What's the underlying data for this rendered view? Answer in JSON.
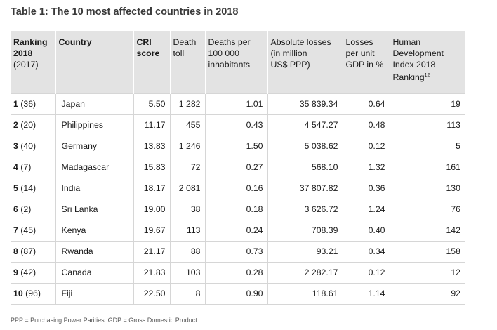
{
  "title": "Table 1: The 10 most affected countries in 2018",
  "headers": {
    "ranking": [
      "Ranking",
      "2018",
      "(2017)"
    ],
    "country": "Country",
    "cri": [
      "CRI",
      "score"
    ],
    "death": [
      "Death",
      "toll"
    ],
    "deaths_per": [
      "Deaths per",
      "100 000",
      "inhabitants"
    ],
    "abs_losses": [
      "Absolute losses",
      "(in million",
      "US$ PPP)"
    ],
    "losses_gdp": [
      "Losses",
      "per unit",
      "GDP in %"
    ],
    "hdi": [
      "Human",
      "Development",
      "Index 2018",
      "Ranking"
    ],
    "hdi_sup": "12"
  },
  "rows": [
    {
      "rank": "1",
      "prev": "(36)",
      "country": "Japan",
      "cri": "5.50",
      "death": "1 282",
      "per": "1.01",
      "abs": "35 839.34",
      "gdp": "0.64",
      "hdi": "19"
    },
    {
      "rank": "2",
      "prev": "(20)",
      "country": "Philippines",
      "cri": "11.17",
      "death": "455",
      "per": "0.43",
      "abs": "4 547.27",
      "gdp": "0.48",
      "hdi": "113"
    },
    {
      "rank": "3",
      "prev": "(40)",
      "country": "Germany",
      "cri": "13.83",
      "death": "1 246",
      "per": "1.50",
      "abs": "5 038.62",
      "gdp": "0.12",
      "hdi": "5"
    },
    {
      "rank": "4",
      "prev": "(7)",
      "country": "Madagascar",
      "cri": "15.83",
      "death": "72",
      "per": "0.27",
      "abs": "568.10",
      "gdp": "1.32",
      "hdi": "161"
    },
    {
      "rank": "5",
      "prev": "(14)",
      "country": "India",
      "cri": "18.17",
      "death": "2 081",
      "per": "0.16",
      "abs": "37 807.82",
      "gdp": "0.36",
      "hdi": "130"
    },
    {
      "rank": "6",
      "prev": "(2)",
      "country": "Sri Lanka",
      "cri": "19.00",
      "death": "38",
      "per": "0.18",
      "abs": "3 626.72",
      "gdp": "1.24",
      "hdi": "76"
    },
    {
      "rank": "7",
      "prev": "(45)",
      "country": "Kenya",
      "cri": "19.67",
      "death": "113",
      "per": "0.24",
      "abs": "708.39",
      "gdp": "0.40",
      "hdi": "142"
    },
    {
      "rank": "8",
      "prev": "(87)",
      "country": "Rwanda",
      "cri": "21.17",
      "death": "88",
      "per": "0.73",
      "abs": "93.21",
      "gdp": "0.34",
      "hdi": "158"
    },
    {
      "rank": "9",
      "prev": "(42)",
      "country": "Canada",
      "cri": "21.83",
      "death": "103",
      "per": "0.28",
      "abs": "2 282.17",
      "gdp": "0.12",
      "hdi": "12"
    },
    {
      "rank": "10",
      "prev": "(96)",
      "country": "Fiji",
      "cri": "22.50",
      "death": "8",
      "per": "0.90",
      "abs": "118.61",
      "gdp": "1.14",
      "hdi": "92"
    }
  ],
  "footnote": "PPP = Purchasing Power Parities. GDP = Gross Domestic Product.",
  "colors": {
    "header_bg": "#e3e3e3",
    "grid": "#d6d6d6",
    "title": "#3a3a3a"
  }
}
